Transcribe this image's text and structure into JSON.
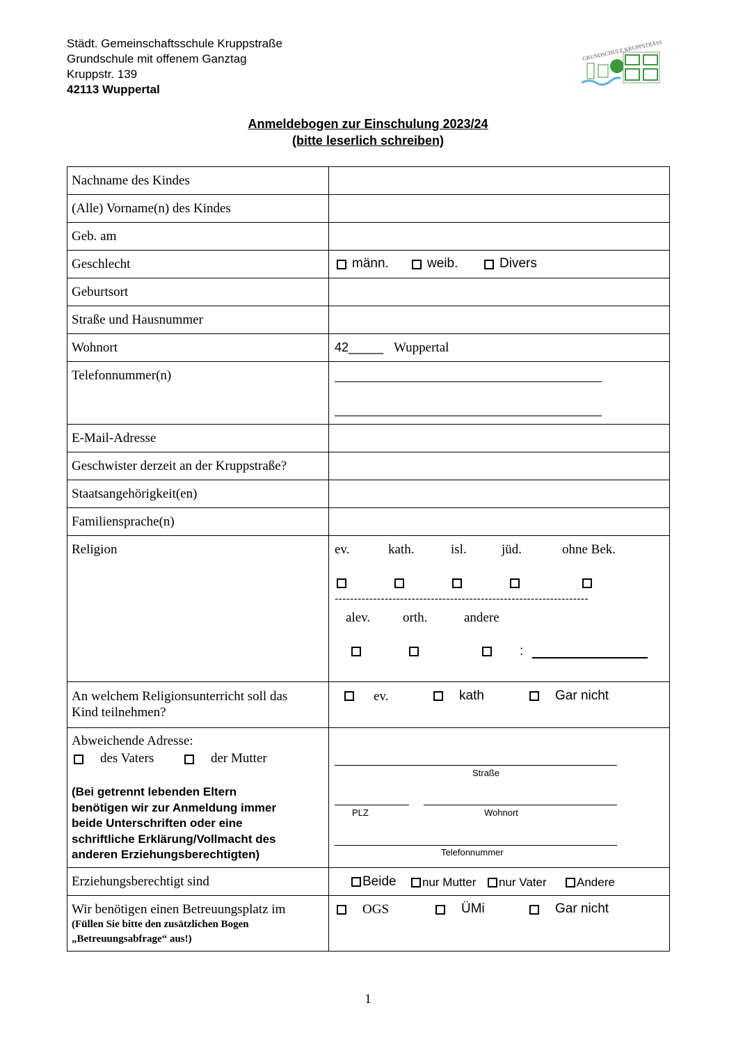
{
  "header": {
    "school": "Städt. Gemeinschaftsschule Kruppstraße",
    "subtitle": "Grundschule mit offenem Ganztag",
    "street": "Kruppstr. 139",
    "city": "42113 Wuppertal",
    "logo_text": "GRUNDSCHULE KRUPPSTRASSE"
  },
  "title": {
    "line1": "Anmeldebogen zur Einschulung 2023/24",
    "line2": "(bitte leserlich schreiben)"
  },
  "rows": {
    "nachname": "Nachname des Kindes",
    "vorname": "(Alle) Vorname(n) des Kindes",
    "geb": "Geb. am",
    "geschlecht": "Geschlecht",
    "geburtsort": "Geburtsort",
    "strasse": "Straße und Hausnummer",
    "wohnort": "Wohnort",
    "telefon": "Telefonnummer(n)",
    "email": "E-Mail-Adresse",
    "geschwister": "Geschwister derzeit an der Kruppstraße?",
    "staat": "Staatsangehörigkeit(en)",
    "sprache": "Familiensprache(n)",
    "religion": "Religion",
    "ru_line1": "An welchem Religionsunterricht soll das",
    "ru_line2": "Kind teilnehmen?",
    "abw": "Abweichende Adresse:",
    "erz": "Erziehungsberechtigt sind",
    "betr": "Wir benötigen einen Betreuungsplatz im",
    "betr_note1": "(Füllen Sie bitte den zusätzlichen Bogen",
    "betr_note2": "„Betreuungsabfrage“ aus!)"
  },
  "geschlecht_options": [
    "männ.",
    "weib.",
    "Divers"
  ],
  "wohnort_value": {
    "prefix": "42_____",
    "city": "Wuppertal"
  },
  "religion_options": [
    "ev.",
    "kath.",
    "isl.",
    "jüd.",
    "ohne Bek.",
    "alev.",
    "orth.",
    "andere"
  ],
  "religion_separator": "------------------------------------------------------------------",
  "religion_colon": ":",
  "ru_options": [
    "ev.",
    "kath",
    "Gar nicht"
  ],
  "abw_options": [
    "des Vaters",
    "der Mutter"
  ],
  "abw_note": [
    "(Bei getrennt lebenden Eltern",
    "benötigen wir zur Anmeldung immer",
    "beide Unterschriften oder eine",
    "schriftliche Erklärung/Vollmacht des",
    "anderen Erziehungsberechtigten)"
  ],
  "abw_fields": {
    "strasse": "Straße",
    "plz": "PLZ",
    "wohnort": "Wohnort",
    "telefon": "Telefonnummer"
  },
  "erz_options": [
    "Beide",
    "nur Mutter",
    "nur Vater",
    "Andere"
  ],
  "betr_options": [
    "OGS",
    "ÜMi",
    "Gar nicht"
  ],
  "page_number": "1",
  "colors": {
    "logo_green": "#3a9a3a",
    "logo_blue": "#5ab4e0"
  }
}
